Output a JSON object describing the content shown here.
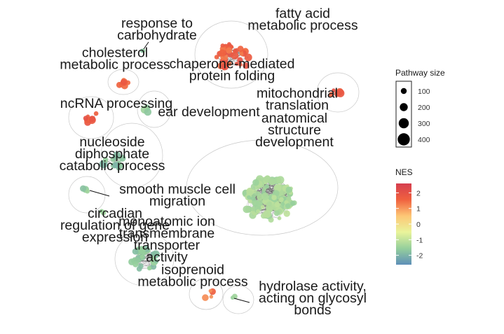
{
  "clusters": [
    {
      "id": "fatty-acid",
      "label": [
        "fatty acid",
        "metabolic process"
      ],
      "nes": 1.9
    },
    {
      "id": "response-carbohydrate",
      "label": [
        "response to",
        "carbohydrate"
      ],
      "nes": -1.4
    },
    {
      "id": "cholesterol",
      "label": [
        "cholesterol",
        "metabolic process"
      ],
      "nes": 1.8
    },
    {
      "id": "chaperone",
      "label": [
        "chaperone-mediated",
        "protein folding"
      ],
      "nes": 2.1
    },
    {
      "id": "ncrna",
      "label": [
        "ncRNA processing"
      ],
      "nes": 1.9
    },
    {
      "id": "ear",
      "label": [
        "ear development"
      ],
      "nes": -1.5
    },
    {
      "id": "mitochondrial",
      "label": [
        "mitochondrial",
        "translation"
      ],
      "nes": 2.1
    },
    {
      "id": "anatomical",
      "label": [
        "anatomical",
        "structure",
        "development"
      ],
      "nes": -1.1
    },
    {
      "id": "nucleoside",
      "label": [
        "nucleoside",
        "diphosphate",
        "catabolic process"
      ],
      "nes": -1.6
    },
    {
      "id": "smooth-muscle",
      "label": [
        "smooth muscle cell",
        "migration"
      ],
      "nes": -1.5
    },
    {
      "id": "circadian",
      "label": [
        "circadian",
        "regulation of gene",
        "expression"
      ],
      "nes": -1.5
    },
    {
      "id": "monoatomic",
      "label": [
        "monoatomic ion",
        "transmembrane",
        "transporter",
        "activity"
      ],
      "nes": -1.6
    },
    {
      "id": "isoprenoid",
      "label": [
        "isoprenoid",
        "metabolic process"
      ],
      "nes": 1.7
    },
    {
      "id": "hydrolase",
      "label": [
        "hydrolase activity,",
        "acting on glycosyl",
        "bonds"
      ],
      "nes": -1.4
    }
  ],
  "legend": {
    "size_title": "Pathway size",
    "sizes": [
      100,
      200,
      300,
      400
    ],
    "nes_title": "NES",
    "nes_ticks": [
      2,
      1,
      0,
      -1,
      -2
    ],
    "nes_range": [
      -2.6,
      2.6
    ],
    "palette": [
      "#5e8fb8",
      "#95cf9c",
      "#e9f49b",
      "#fdc776",
      "#f0613f",
      "#d53e4f"
    ]
  }
}
